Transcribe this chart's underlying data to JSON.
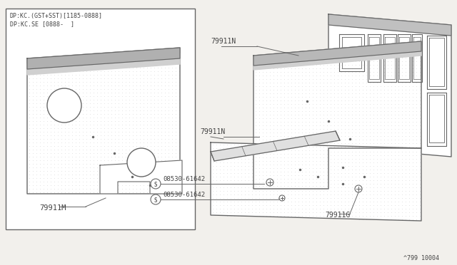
{
  "bg_color": "#f2f0ec",
  "line_color": "#666666",
  "text_color": "#444444",
  "box_label1": "DP:KC.(GST+SST)[1185-0888]",
  "box_label2": "DP:KC.SE [0888-  ]",
  "part_79911M": "79911M",
  "part_79911N": "79911N",
  "part_79911G": "79911G",
  "part_screw": "08530-61642",
  "title_bottom": "^799 10004"
}
